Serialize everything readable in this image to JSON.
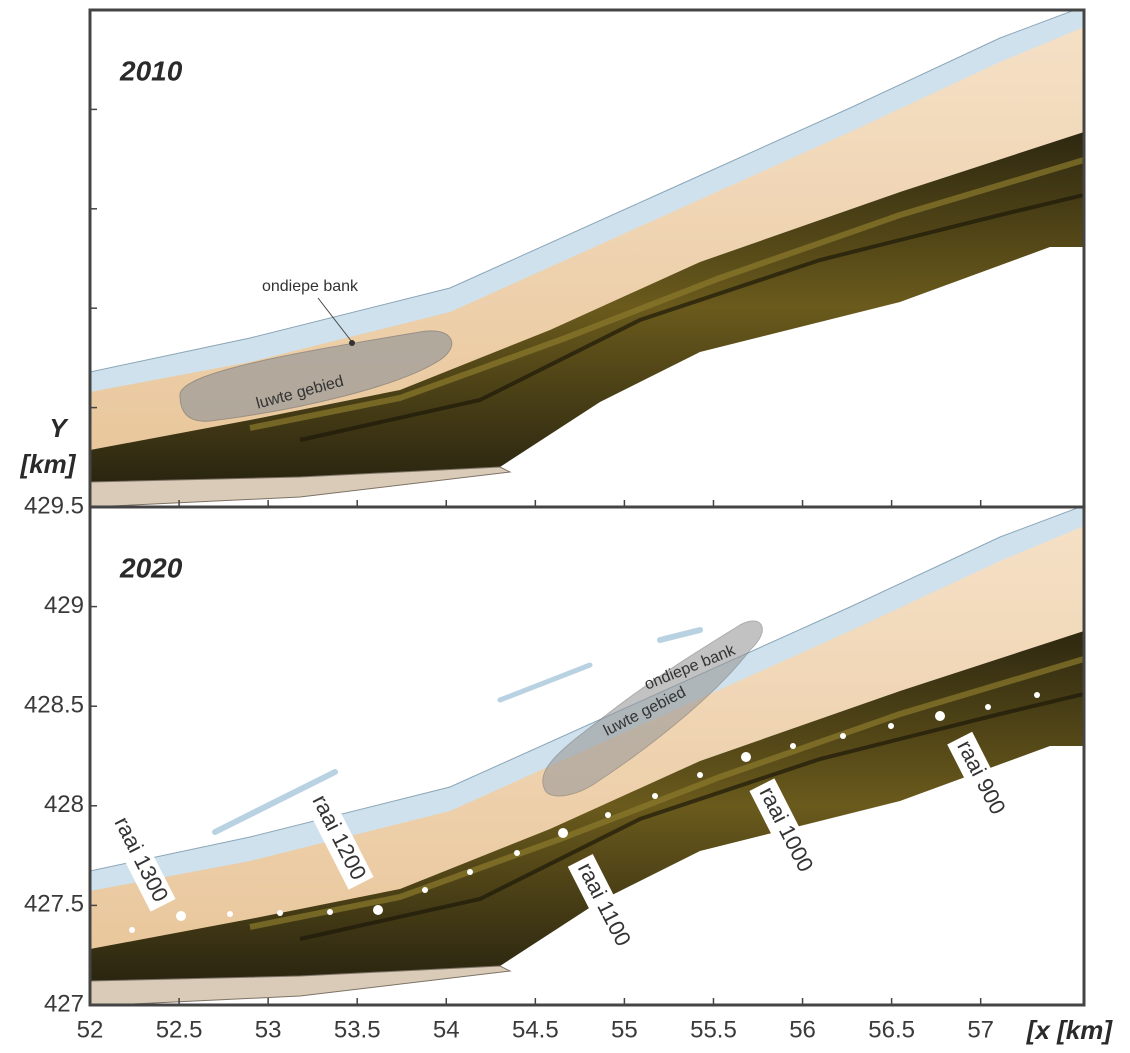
{
  "chart_data": [
    {
      "type": "map",
      "title": "2010",
      "xlim": [
        52,
        57.58
      ],
      "ylim": [
        427,
        429.5
      ],
      "xticks": [
        52,
        52.5,
        53,
        53.5,
        54,
        54.5,
        55,
        55.5,
        56,
        56.5,
        57
      ],
      "yticks": [
        427,
        427.5,
        428,
        428.5,
        429,
        429.5
      ],
      "tick_labels": false,
      "annotations": [
        "ondiepe bank",
        "luwte gebied"
      ]
    },
    {
      "type": "map",
      "title": "2020",
      "xlim": [
        52,
        57.58
      ],
      "ylim": [
        427,
        429.5
      ],
      "xticks": [
        52,
        52.5,
        53,
        53.5,
        54,
        54.5,
        55,
        55.5,
        56,
        56.5,
        57
      ],
      "yticks": [
        427,
        427.5,
        428,
        428.5,
        429,
        429.5
      ],
      "tick_labels": true,
      "annotations": [
        "ondiepe bank",
        "luwte gebied",
        "raai 1300",
        "raai 1200",
        "raai 1100",
        "raai 1000",
        "raai 900"
      ],
      "xlabel": "[x [km]",
      "ylabel": [
        "Y",
        "[km]"
      ]
    }
  ]
}
